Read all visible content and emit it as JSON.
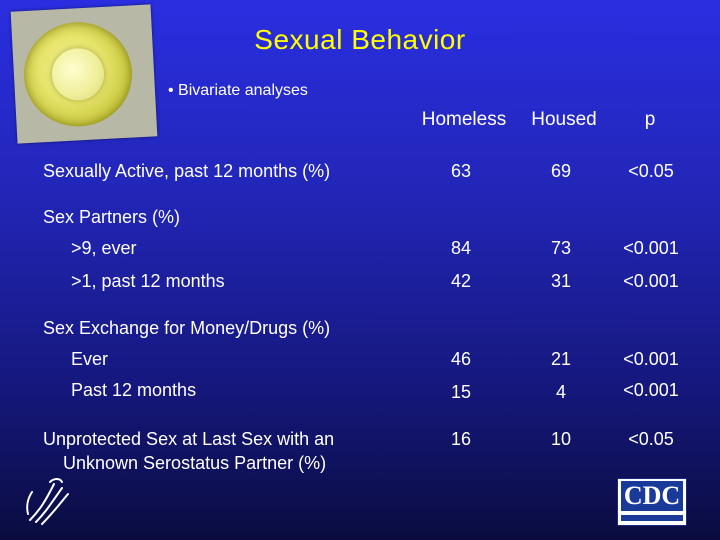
{
  "slide": {
    "title": "Sexual Behavior",
    "subtitle": "• Bivariate analyses"
  },
  "table": {
    "columns": [
      "Homeless",
      "Housed",
      "p"
    ],
    "rows": [
      {
        "label": "Sexually Active, past 12 months (%)",
        "homeless": "63",
        "housed": "69",
        "p": "<0.05"
      },
      {
        "label": "Sex Partners (%)"
      },
      {
        "label": ">9, ever",
        "homeless": "84",
        "housed": "73",
        "p": "<0.001"
      },
      {
        "label": ">1, past 12 months",
        "homeless": "42",
        "housed": "31",
        "p": "<0.001"
      },
      {
        "label": "Sex Exchange for Money/Drugs (%)"
      },
      {
        "label": "Ever",
        "homeless": "46",
        "housed": "21",
        "p": "<0.001"
      },
      {
        "label": "Past 12 months",
        "homeless": "15",
        "housed": "4",
        "p": "<0.001"
      },
      {
        "label_line1": "Unprotected Sex at Last Sex with an",
        "label_line2": "Unknown Serostatus Partner (%)",
        "homeless": "16",
        "housed": "10",
        "p": "<0.05"
      }
    ]
  },
  "logos": {
    "cdc": "CDC"
  },
  "colors": {
    "title": "#ffff00",
    "background_top": "#2a2ee0",
    "background_bottom": "#0a0c40"
  }
}
